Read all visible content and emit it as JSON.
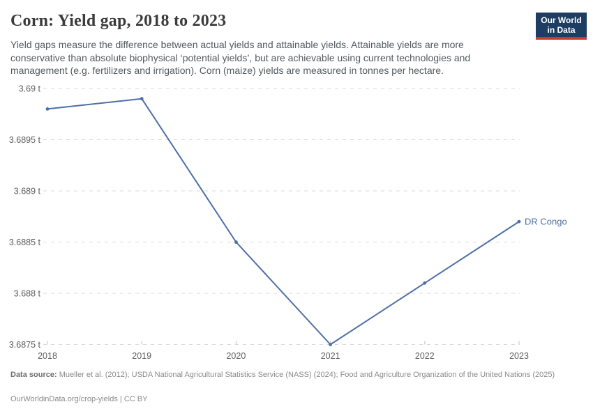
{
  "header": {
    "title": "Corn: Yield gap, 2018 to 2023",
    "subtitle": "Yield gaps measure the difference between actual yields and attainable yields. Attainable yields are more conservative than absolute biophysical ‘potential yields’, but are achievable using current technologies and management (e.g. fertilizers and irrigation). Corn (maize) yields are measured in tonnes per hectare."
  },
  "logo": {
    "line1": "Our World",
    "line2": "in Data",
    "bg_color": "#1d3d63",
    "stripe_color": "#cf392c"
  },
  "chart_data": {
    "type": "line",
    "title": "Corn: Yield gap, 2018 to 2023",
    "x": [
      2018,
      2019,
      2020,
      2021,
      2022,
      2023
    ],
    "series": [
      {
        "name": "DR Congo",
        "values": [
          3.6898,
          3.6899,
          3.6885,
          3.6875,
          3.6881,
          3.6887
        ],
        "color": "#4d6ea7"
      }
    ],
    "unit": "tonnes per hectare",
    "xlabel": "",
    "ylabel": "",
    "ylim": [
      3.6875,
      3.69
    ],
    "xlim": [
      2018,
      2023
    ],
    "ytick_values": [
      3.69,
      3.6895,
      3.689,
      3.6885,
      3.688,
      3.6875
    ],
    "ytick_labels": [
      "3.69 t",
      "3.6895 t",
      "3.689 t",
      "3.6885 t",
      "3.688 t",
      "3.6875 t"
    ],
    "xtick_values": [
      2018,
      2019,
      2020,
      2021,
      2022,
      2023
    ],
    "xtick_labels": [
      "2018",
      "2019",
      "2020",
      "2021",
      "2022",
      "2023"
    ],
    "grid": "horizontal-dashed",
    "legend_position": "end-of-line-label",
    "end_label": "DR Congo"
  },
  "footer": {
    "data_source_label": "Data source:",
    "data_source_text": " Mueller et al. (2012); USDA National Agricultural Statistics Service (NASS) (2024); Food and Agriculture Organization of the United Nations (2025)",
    "license_line": "OurWorldinData.org/crop-yields | CC BY"
  },
  "colors": {
    "line": "#4d6ea7",
    "grid": "#dadada",
    "tick": "#c2c2c2",
    "tick_text": "#5e5e5e",
    "title_text": "#3b3b3b",
    "subtitle_text": "#53595d",
    "footer_text": "#8a8a8a"
  }
}
